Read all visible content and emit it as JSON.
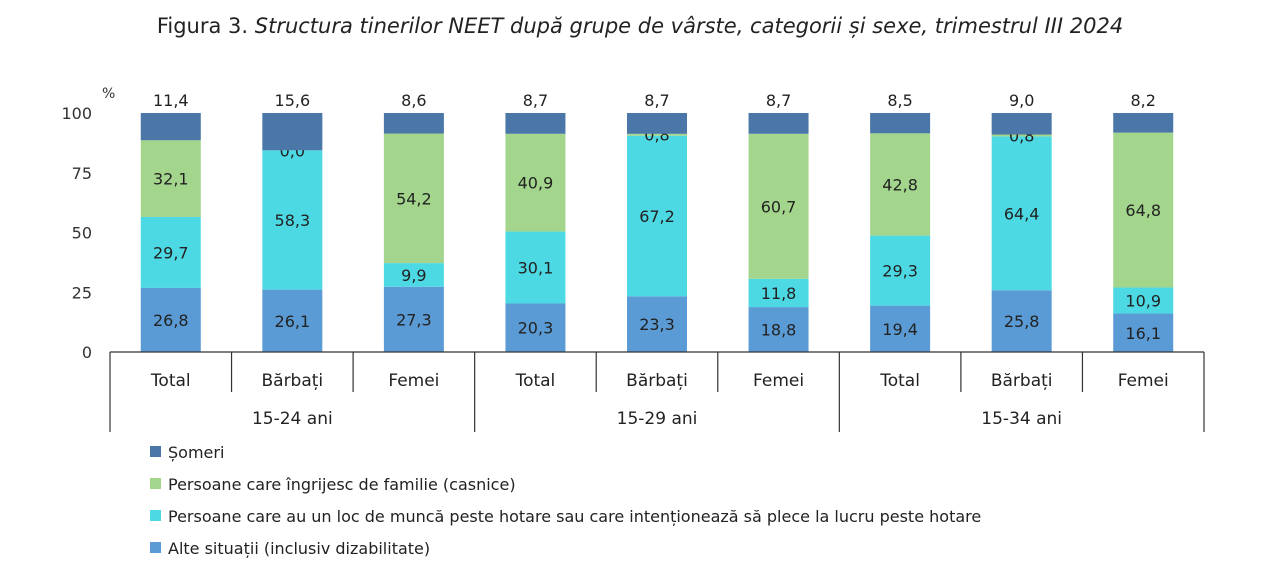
{
  "figure": {
    "label": "Figura 3.",
    "title": "Structura tinerilor NEET după grupe de vârste, categorii și sexe, trimestrul III 2024"
  },
  "chart_data": {
    "type": "bar",
    "stacked": true,
    "ylabel": "%",
    "ylim": [
      0,
      100
    ],
    "yticks": [
      0,
      25,
      50,
      75,
      100
    ],
    "categories": [
      "Total",
      "Bărbați",
      "Femei",
      "Total",
      "Bărbați",
      "Femei",
      "Total",
      "Bărbați",
      "Femei"
    ],
    "groups": [
      {
        "label": "15-24 ani",
        "count": 3
      },
      {
        "label": "15-29 ani",
        "count": 3
      },
      {
        "label": "15-34 ani",
        "count": 3
      }
    ],
    "series": [
      {
        "name": "Alte situații (inclusiv dizabilitate)",
        "color": "#5b9bd5",
        "values": [
          26.8,
          26.1,
          27.3,
          20.3,
          23.3,
          18.8,
          19.4,
          25.8,
          16.1
        ],
        "labels": [
          "26,8",
          "26,1",
          "27,3",
          "20,3",
          "23,3",
          "18,8",
          "19,4",
          "25,8",
          "16,1"
        ]
      },
      {
        "name": "Persoane care au un loc de muncă peste hotare sau care intenționează să plece la lucru peste hotare",
        "color": "#4dd9e4",
        "values": [
          29.7,
          58.3,
          9.9,
          30.1,
          67.2,
          11.8,
          29.3,
          64.4,
          10.9
        ],
        "labels": [
          "29,7",
          "58,3",
          "9,9",
          "30,1",
          "67,2",
          "11,8",
          "29,3",
          "64,4",
          "10,9"
        ]
      },
      {
        "name": "Persoane care îngrijesc de familie (casnice)",
        "color": "#a3d68c",
        "values": [
          32.1,
          0.0,
          54.2,
          40.9,
          0.8,
          60.7,
          42.8,
          0.8,
          64.8
        ],
        "labels": [
          "32,1",
          "0,0",
          "54,2",
          "40,9",
          "0,8",
          "60,7",
          "42,8",
          "0,8",
          "64,8"
        ]
      },
      {
        "name": "Șomeri",
        "color": "#4a76a8",
        "values": [
          11.4,
          15.6,
          8.6,
          8.7,
          8.7,
          8.7,
          8.5,
          9.0,
          8.2
        ],
        "labels": [
          "11,4",
          "15,6",
          "8,6",
          "8,7",
          "8,7",
          "8,7",
          "8,5",
          "9,0",
          "8,2"
        ]
      }
    ],
    "legend_order": [
      3,
      2,
      1,
      0
    ],
    "legend_placement": "bottom-left",
    "grid": false
  }
}
